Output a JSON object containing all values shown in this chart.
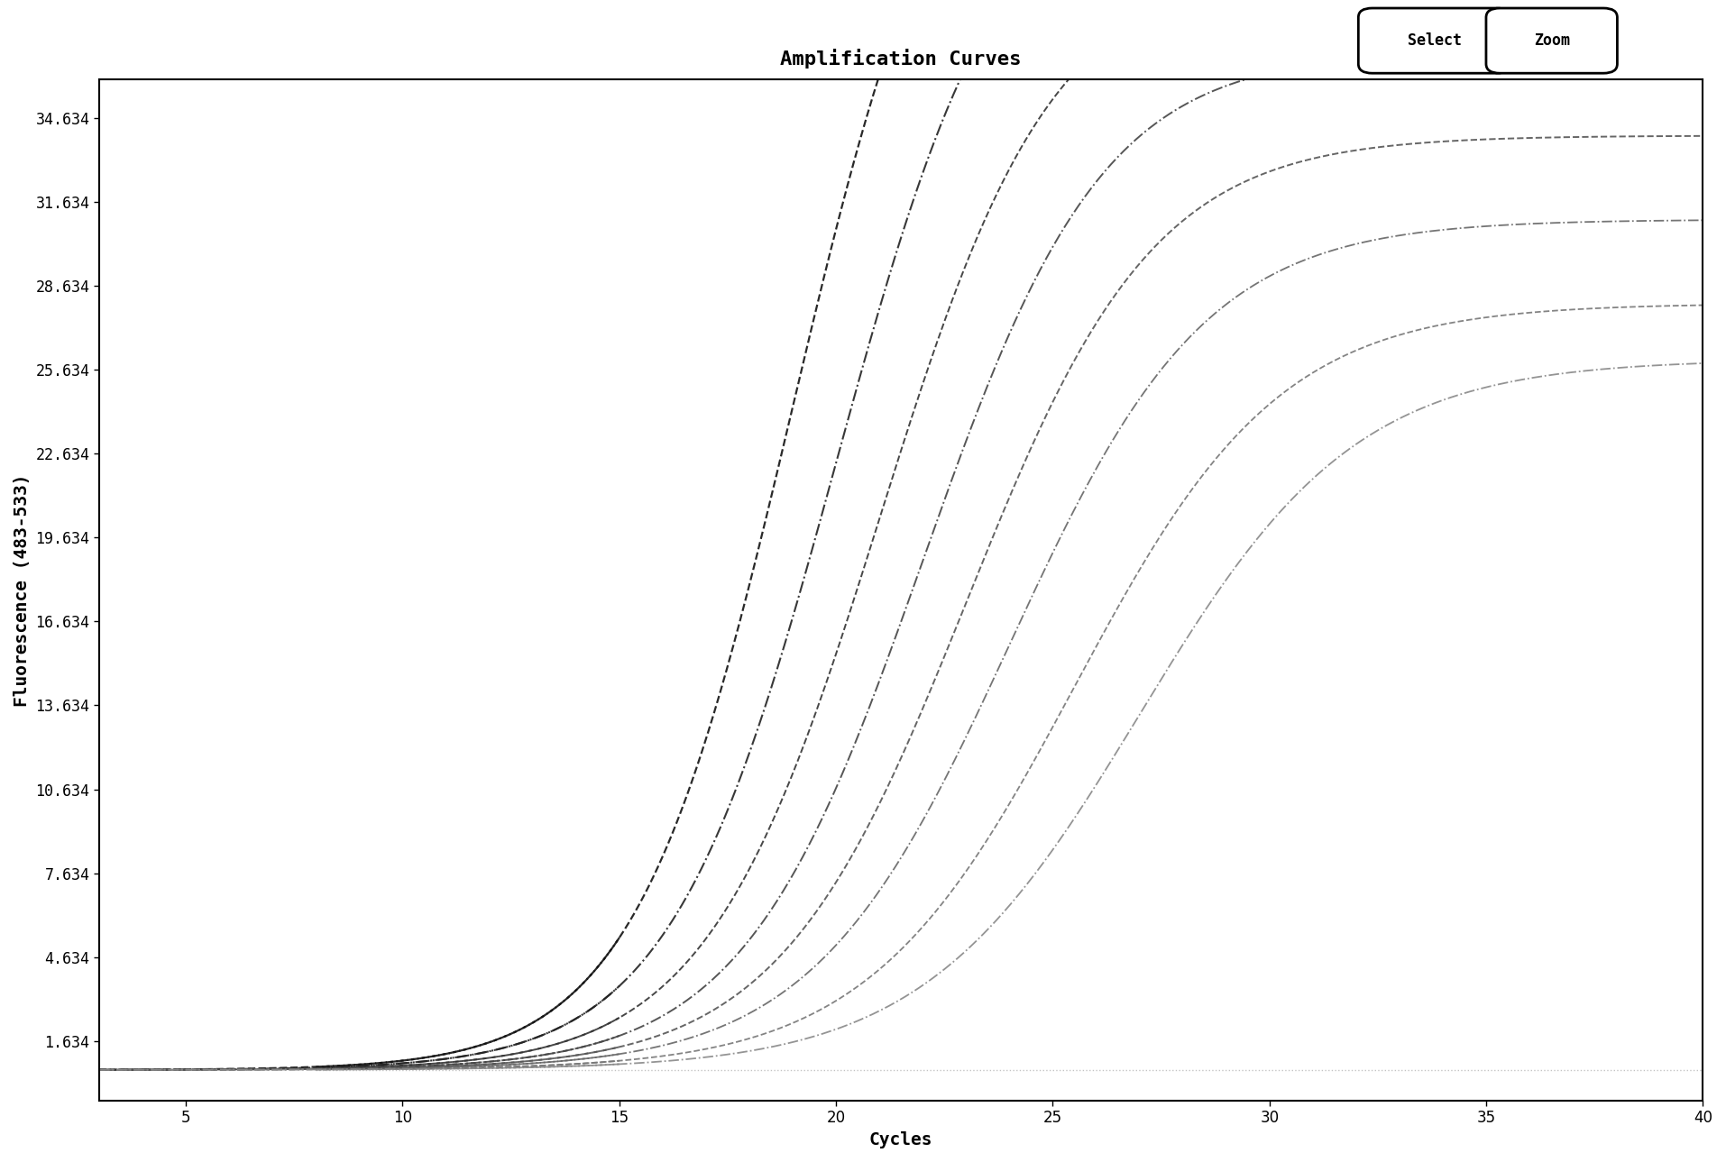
{
  "title": "Amplification Curves",
  "xlabel": "Cycles",
  "ylabel": "Fluorescence (483-533)",
  "xlim": [
    3,
    40
  ],
  "ylim": [
    -500,
    36000
  ],
  "xticks": [
    5,
    10,
    15,
    20,
    25,
    30,
    35,
    40
  ],
  "yticks": [
    1634,
    4634,
    7634,
    10634,
    13634,
    16634,
    19634,
    22634,
    25634,
    28634,
    31634,
    34634
  ],
  "ytick_labels": [
    "1.634",
    "4.634",
    "7.634",
    "10.634",
    "13.634",
    "16.634",
    "19.634",
    "22.634",
    "25.634",
    "28.634",
    "31.634",
    "34.634"
  ],
  "background_color": "#ffffff",
  "plot_bg_color": "#ffffff",
  "num_curves": 8,
  "midpoints": [
    19.0,
    20.0,
    21.0,
    22.0,
    23.0,
    24.0,
    25.5,
    27.0
  ],
  "plateaus": [
    48000,
    44000,
    40000,
    37000,
    34000,
    31000,
    28000,
    26000
  ],
  "baselines": [
    600,
    600,
    600,
    600,
    600,
    600,
    600,
    600
  ],
  "slopes": [
    0.55,
    0.52,
    0.5,
    0.48,
    0.46,
    0.44,
    0.42,
    0.4
  ],
  "neg_control_y": 600,
  "gray_shades": [
    "#111111",
    "#222222",
    "#333333",
    "#444444",
    "#555555",
    "#666666",
    "#777777",
    "#888888"
  ],
  "linestyles": [
    "--",
    "-.",
    "--",
    "-.",
    "--",
    "-.",
    "--",
    "-."
  ],
  "linewidths": [
    1.6,
    1.5,
    1.4,
    1.4,
    1.4,
    1.3,
    1.3,
    1.3
  ],
  "title_fontsize": 16,
  "axis_label_fontsize": 14,
  "tick_fontsize": 12,
  "button_select_text": "Select",
  "button_zoom_text": "Zoom"
}
